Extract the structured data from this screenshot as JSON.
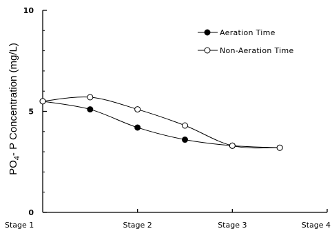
{
  "chart_data": {
    "type": "line",
    "ylabel": {
      "main": "PO",
      "sub": "4",
      "rest": "- P  Concentration (mg/L)"
    },
    "xlabel": "",
    "categories": [
      "Stage 1",
      "Stage 2",
      "Stage 3",
      "Stage 4"
    ],
    "ylim": [
      0,
      10
    ],
    "yticks": [
      0,
      5,
      10
    ],
    "grid": false,
    "legend_position": "top-right",
    "series": [
      {
        "name": "Aeration Time",
        "marker": "filled-circle",
        "color": "#000000",
        "points": [
          {
            "x": 1.0,
            "y": 5.5
          },
          {
            "x": 1.5,
            "y": 5.1
          },
          {
            "x": 2.0,
            "y": 4.2
          },
          {
            "x": 2.5,
            "y": 3.6
          },
          {
            "x": 3.0,
            "y": 3.3
          },
          {
            "x": 3.5,
            "y": 3.2
          }
        ]
      },
      {
        "name": "Non-Aeration Time",
        "marker": "open-circle",
        "color": "#000000",
        "points": [
          {
            "x": 1.0,
            "y": 5.5
          },
          {
            "x": 1.5,
            "y": 5.7
          },
          {
            "x": 2.0,
            "y": 5.1
          },
          {
            "x": 2.5,
            "y": 4.3
          },
          {
            "x": 3.0,
            "y": 3.3
          },
          {
            "x": 3.5,
            "y": 3.2
          }
        ]
      }
    ]
  }
}
